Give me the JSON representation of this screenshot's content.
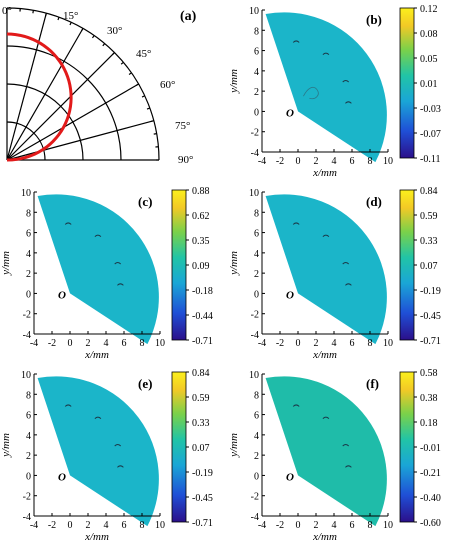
{
  "figure": {
    "panel_a": {
      "label": "(a)",
      "angles": [
        "0°",
        "15°",
        "30°",
        "45°",
        "60°",
        "75°",
        "90°"
      ],
      "colors": {
        "grid": "#000000",
        "curve": "#e21a1a"
      }
    },
    "panels": [
      {
        "id": "b",
        "label": "(b)",
        "colorbar": [
          "0.12",
          "0.08",
          "0.05",
          "0.01",
          "-0.03",
          "-0.07",
          "-0.11"
        ],
        "fill": "#1bb5c9",
        "y_ticks": [
          "10",
          "8",
          "6",
          "4",
          "2",
          "0",
          "-2",
          "-4"
        ],
        "x_ticks": [
          "-4",
          "-2",
          "0",
          "2",
          "4",
          "6",
          "8",
          "10"
        ],
        "xlabel": "x/mm",
        "ylabel": "y/mm",
        "origin": "O"
      },
      {
        "id": "c",
        "label": "(c)",
        "colorbar": [
          "0.88",
          "0.62",
          "0.35",
          "0.09",
          "-0.18",
          "-0.44",
          "-0.71"
        ],
        "fill": "#1bb5c9",
        "y_ticks": [
          "10",
          "8",
          "6",
          "4",
          "2",
          "0",
          "-2",
          "-4"
        ],
        "x_ticks": [
          "-4",
          "-2",
          "0",
          "2",
          "4",
          "6",
          "8",
          "10"
        ],
        "xlabel": "x/mm",
        "ylabel": "y/mm",
        "origin": "O"
      },
      {
        "id": "d",
        "label": "(d)",
        "colorbar": [
          "0.84",
          "0.59",
          "0.33",
          "0.07",
          "-0.19",
          "-0.45",
          "-0.71"
        ],
        "fill": "#1bb5c9",
        "y_ticks": [
          "10",
          "8",
          "6",
          "4",
          "2",
          "0",
          "-2",
          "-4"
        ],
        "x_ticks": [
          "-4",
          "-2",
          "0",
          "2",
          "4",
          "6",
          "8",
          "10"
        ],
        "xlabel": "x/mm",
        "ylabel": "y/mm",
        "origin": "O"
      },
      {
        "id": "e",
        "label": "(e)",
        "colorbar": [
          "0.84",
          "0.59",
          "0.33",
          "0.07",
          "-0.19",
          "-0.45",
          "-0.71"
        ],
        "fill": "#1bb5c9",
        "y_ticks": [
          "10",
          "8",
          "6",
          "4",
          "2",
          "0",
          "-2",
          "-4"
        ],
        "x_ticks": [
          "-4",
          "-2",
          "0",
          "2",
          "4",
          "6",
          "8",
          "10"
        ],
        "xlabel": "x/mm",
        "ylabel": "y/mm",
        "origin": "O"
      },
      {
        "id": "f",
        "label": "(f)",
        "colorbar": [
          "0.58",
          "0.38",
          "0.18",
          "-0.01",
          "-0.21",
          "-0.40",
          "-0.60"
        ],
        "fill": "#1fbca9",
        "y_ticks": [
          "10",
          "8",
          "6",
          "4",
          "2",
          "0",
          "-2",
          "-4"
        ],
        "x_ticks": [
          "-4",
          "-2",
          "0",
          "2",
          "4",
          "6",
          "8",
          "10"
        ],
        "xlabel": "x/mm",
        "ylabel": "y/mm",
        "origin": "O"
      }
    ],
    "colormap": [
      "#2b0f8a",
      "#1f4fd6",
      "#1aa6d6",
      "#21c4a6",
      "#7ad14a",
      "#f2c926",
      "#fcef1c"
    ]
  }
}
